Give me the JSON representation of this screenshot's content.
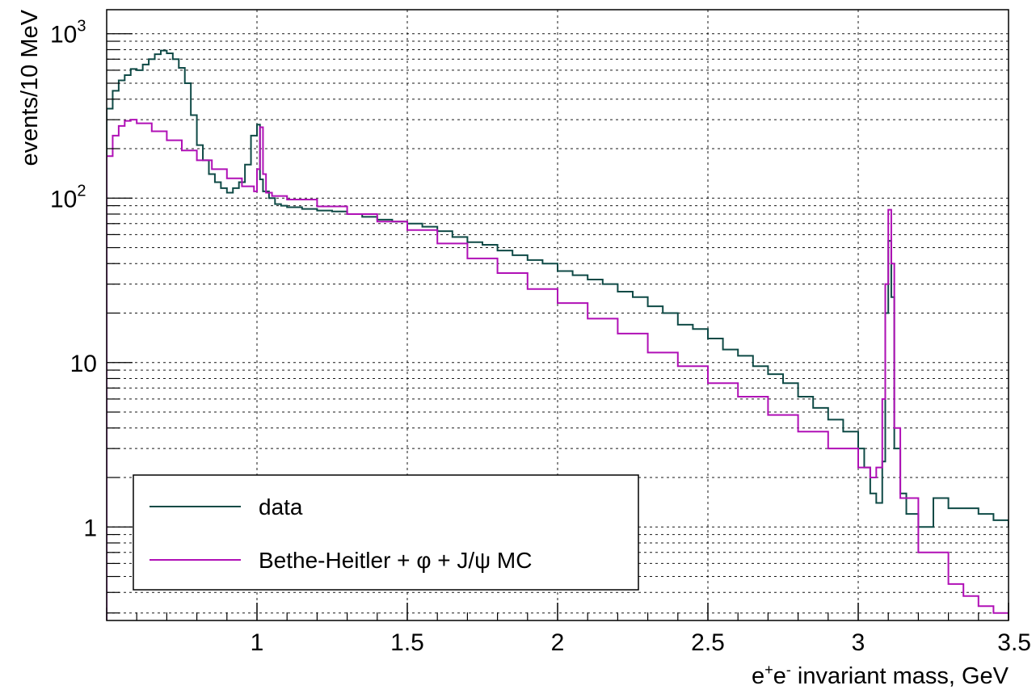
{
  "chart_data": {
    "type": "line",
    "subtype": "step-histogram",
    "x_label_parts": [
      "e",
      "+",
      "e",
      "-",
      " invariant mass, GeV"
    ],
    "ylabel": "events/10 MeV",
    "x_range": [
      0.5,
      3.5
    ],
    "y_range": [
      0.27,
      1400
    ],
    "y_scale": "log",
    "grid": true,
    "legend_position": "bottom-left",
    "x_ticks": [
      {
        "value": 1,
        "label": "1"
      },
      {
        "value": 1.5,
        "label": "1.5"
      },
      {
        "value": 2,
        "label": "2"
      },
      {
        "value": 2.5,
        "label": "2.5"
      },
      {
        "value": 3,
        "label": "3"
      },
      {
        "value": 3.5,
        "label": "3.5"
      }
    ],
    "y_ticks": [
      {
        "value": 1,
        "label": "1"
      },
      {
        "value": 10,
        "label": "10"
      },
      {
        "value": 100,
        "base": "10",
        "exp": "2"
      },
      {
        "value": 1000,
        "base": "10",
        "exp": "3"
      }
    ],
    "series": [
      {
        "name": "data",
        "color": "#0f4a46",
        "x": [
          0.5,
          0.52,
          0.54,
          0.56,
          0.58,
          0.6,
          0.62,
          0.64,
          0.66,
          0.68,
          0.7,
          0.72,
          0.74,
          0.76,
          0.78,
          0.8,
          0.82,
          0.84,
          0.86,
          0.88,
          0.9,
          0.92,
          0.94,
          0.96,
          0.98,
          1.0,
          1.01,
          1.02,
          1.04,
          1.06,
          1.08,
          1.1,
          1.15,
          1.2,
          1.25,
          1.3,
          1.35,
          1.4,
          1.45,
          1.5,
          1.55,
          1.6,
          1.65,
          1.7,
          1.75,
          1.8,
          1.85,
          1.9,
          1.95,
          2.0,
          2.05,
          2.1,
          2.15,
          2.2,
          2.25,
          2.3,
          2.35,
          2.4,
          2.45,
          2.5,
          2.55,
          2.6,
          2.65,
          2.7,
          2.75,
          2.8,
          2.85,
          2.9,
          2.95,
          3.0,
          3.02,
          3.04,
          3.06,
          3.08,
          3.09,
          3.1,
          3.11,
          3.12,
          3.14,
          3.16,
          3.2,
          3.25,
          3.3,
          3.35,
          3.4,
          3.45,
          3.5
        ],
        "y": [
          350,
          450,
          520,
          560,
          610,
          600,
          650,
          700,
          750,
          790,
          760,
          700,
          620,
          500,
          320,
          210,
          170,
          140,
          125,
          115,
          108,
          115,
          125,
          160,
          240,
          280,
          130,
          110,
          100,
          92,
          90,
          88,
          86,
          84,
          83,
          80,
          77,
          74,
          72,
          70,
          67,
          63,
          58,
          54,
          52,
          48,
          45,
          42,
          40,
          36,
          34,
          32,
          30,
          27,
          25,
          22,
          20,
          17,
          16,
          14,
          12,
          11,
          9.5,
          8.5,
          7.5,
          6.2,
          5.3,
          4.5,
          3.8,
          3.0,
          2.3,
          1.6,
          1.4,
          2.5,
          20,
          55,
          25,
          3,
          1.6,
          1.2,
          1.0,
          1.5,
          1.3,
          1.3,
          1.2,
          1.1,
          1.0
        ]
      },
      {
        "name": "Bethe-Heitler + φ + J/ψ MC",
        "color": "#b010b6",
        "x": [
          0.5,
          0.52,
          0.54,
          0.56,
          0.58,
          0.6,
          0.65,
          0.7,
          0.75,
          0.8,
          0.85,
          0.9,
          0.95,
          0.99,
          1.0,
          1.01,
          1.02,
          1.03,
          1.05,
          1.1,
          1.2,
          1.3,
          1.4,
          1.5,
          1.6,
          1.7,
          1.8,
          1.9,
          2.0,
          2.1,
          2.2,
          2.3,
          2.4,
          2.5,
          2.6,
          2.7,
          2.8,
          2.9,
          3.0,
          3.04,
          3.06,
          3.08,
          3.09,
          3.1,
          3.11,
          3.12,
          3.14,
          3.2,
          3.3,
          3.35,
          3.4,
          3.45,
          3.5
        ],
        "y": [
          180,
          240,
          275,
          295,
          300,
          285,
          255,
          225,
          195,
          170,
          150,
          132,
          118,
          110,
          150,
          270,
          140,
          108,
          103,
          98,
          89,
          80,
          72,
          64,
          53,
          43,
          35,
          28,
          23,
          18.5,
          15,
          11.5,
          9.5,
          7.5,
          6.2,
          4.8,
          3.8,
          3.0,
          2.3,
          2.0,
          2.3,
          6,
          30,
          85,
          40,
          4,
          1.5,
          0.7,
          0.45,
          0.38,
          0.33,
          0.3,
          0.28
        ]
      }
    ]
  }
}
